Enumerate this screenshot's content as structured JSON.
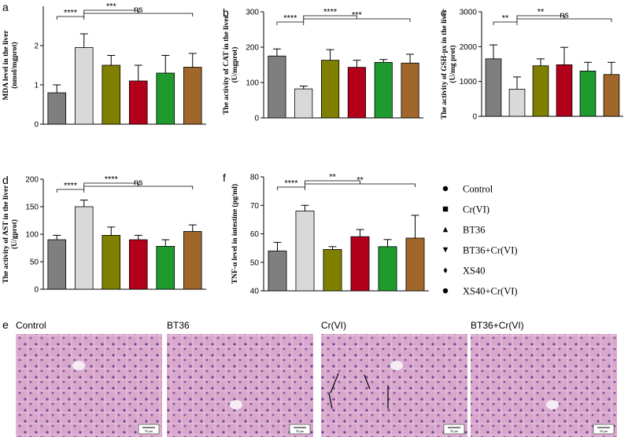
{
  "chart_data": [
    {
      "type": "bar",
      "panel": "a",
      "y_label": [
        "MDA level in the liver",
        "(nmol/mgprot)"
      ],
      "values": [
        0.8,
        1.95,
        1.5,
        1.1,
        1.3,
        1.45
      ],
      "errors": [
        0.2,
        0.35,
        0.25,
        0.4,
        0.45,
        0.35
      ],
      "ylim": [
        0,
        3
      ],
      "yticks": [
        0,
        1,
        2
      ],
      "comparisons": [
        {
          "groups": [
            "Control",
            "Cr(VI)"
          ],
          "label": "****"
        },
        {
          "groups": [
            "Cr(VI)",
            "BT36+Cr(VI)"
          ],
          "label": "***"
        },
        {
          "groups": [
            "Cr(VI)",
            "XS40+Cr(VI)"
          ],
          "label": "ns"
        }
      ]
    },
    {
      "type": "bar",
      "panel": "b",
      "y_label": [
        "The activity of CAT in the liver",
        "(U/mgprot)"
      ],
      "values": [
        175,
        82,
        163,
        143,
        157,
        155
      ],
      "errors": [
        20,
        8,
        30,
        20,
        8,
        25
      ],
      "ylim": [
        0,
        300
      ],
      "yticks": [
        0,
        100,
        200,
        300
      ],
      "comparisons": [
        {
          "groups": [
            "Control",
            "Cr(VI)"
          ],
          "label": "****"
        },
        {
          "groups": [
            "Cr(VI)",
            "BT36+Cr(VI)"
          ],
          "label": "****"
        },
        {
          "groups": [
            "Cr(VI)",
            "XS40+Cr(VI)"
          ],
          "label": "***"
        }
      ]
    },
    {
      "type": "bar",
      "panel": "c",
      "y_label": [
        "The activity of GSH-px in the liver",
        "(U/mg prot)"
      ],
      "values": [
        1650,
        780,
        1450,
        1480,
        1300,
        1200
      ],
      "errors": [
        400,
        350,
        200,
        500,
        250,
        350
      ],
      "ylim": [
        0,
        3000
      ],
      "yticks": [
        0,
        1000,
        2000,
        3000
      ],
      "comparisons": [
        {
          "groups": [
            "Control",
            "Cr(VI)"
          ],
          "label": "**"
        },
        {
          "groups": [
            "Cr(VI)",
            "BT36+Cr(VI)"
          ],
          "label": "**"
        },
        {
          "groups": [
            "Cr(VI)",
            "XS40+Cr(VI)"
          ],
          "label": "ns"
        }
      ]
    },
    {
      "type": "bar",
      "panel": "d",
      "y_label": [
        "The activity of AST in the liver",
        "(U/gprot)"
      ],
      "values": [
        90,
        150,
        98,
        90,
        78,
        105
      ],
      "errors": [
        8,
        12,
        15,
        8,
        12,
        12
      ],
      "ylim": [
        0,
        200
      ],
      "yticks": [
        0,
        50,
        100,
        150,
        200
      ],
      "comparisons": [
        {
          "groups": [
            "Control",
            "Cr(VI)"
          ],
          "label": "****"
        },
        {
          "groups": [
            "Cr(VI)",
            "BT36+Cr(VI)"
          ],
          "label": "****"
        },
        {
          "groups": [
            "Cr(VI)",
            "XS40+Cr(VI)"
          ],
          "label": "ns"
        }
      ]
    },
    {
      "type": "bar",
      "panel": "f",
      "y_label": [
        "TNF-α level in intestine (pg/ml)"
      ],
      "values": [
        54,
        68,
        54.5,
        59,
        55.5,
        58.5
      ],
      "errors": [
        3,
        2,
        1,
        2.5,
        2.5,
        8
      ],
      "ylim": [
        40,
        80
      ],
      "yticks": [
        40,
        50,
        60,
        70,
        80
      ],
      "comparisons": [
        {
          "groups": [
            "Control",
            "Cr(VI)"
          ],
          "label": "****"
        },
        {
          "groups": [
            "Cr(VI)",
            "BT36+Cr(VI)"
          ],
          "label": "**"
        },
        {
          "groups": [
            "Cr(VI)",
            "XS40+Cr(VI)"
          ],
          "label": "**"
        }
      ]
    }
  ],
  "groups": {
    "names": [
      "Control",
      "Cr(VI)",
      "BT36",
      "BT36+Cr(VI)",
      "XS40",
      "XS40+Cr(VI)"
    ],
    "colors": [
      "#7f7f7f",
      "#d9d9d9",
      "#7f7f00",
      "#b3001b",
      "#1e9a2e",
      "#a0662a"
    ]
  },
  "histology": {
    "panel": "e",
    "images": [
      "Control",
      "BT36",
      "Cr(VI)",
      "BT36+Cr(VI)"
    ],
    "scale_bar": "50 μm"
  }
}
